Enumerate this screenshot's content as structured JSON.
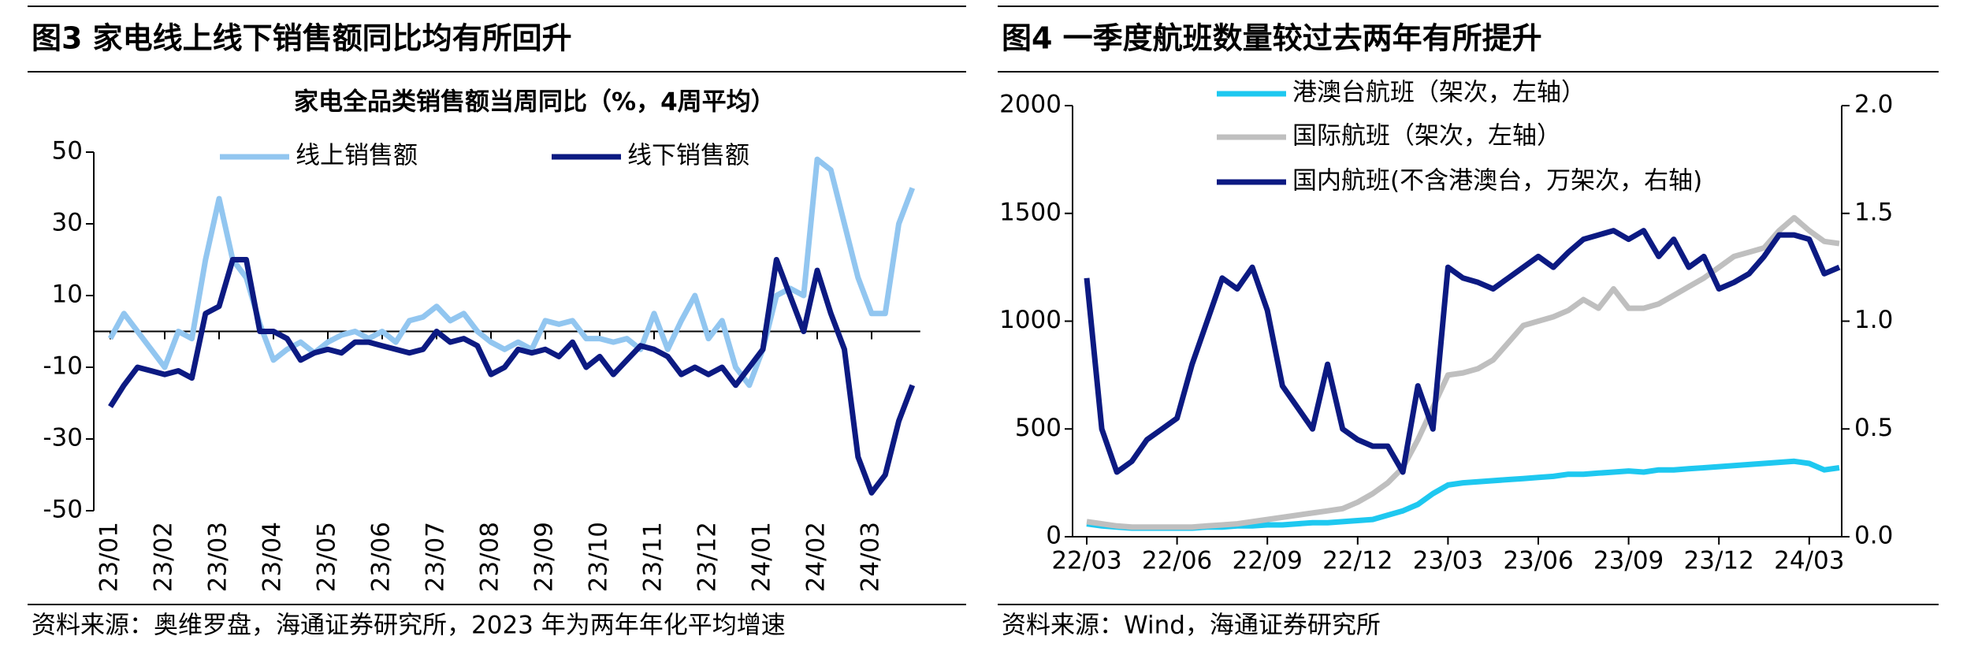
{
  "chart_data": [
    {
      "type": "line",
      "heading": "图3  家电线上线下销售额同比均有所回升",
      "title": "家电全品类销售额当周同比（%，4周平均）",
      "source": "资料来源：奥维罗盘，海通证券研究所，2023 年为两年年化平均增速",
      "categories": [
        "23/01",
        null,
        null,
        null,
        "23/02",
        null,
        null,
        null,
        "23/03",
        null,
        null,
        null,
        "23/04",
        null,
        null,
        null,
        "23/05",
        null,
        null,
        null,
        "23/06",
        null,
        null,
        null,
        "23/07",
        null,
        null,
        null,
        "23/08",
        null,
        null,
        null,
        "23/09",
        null,
        null,
        null,
        "23/10",
        null,
        null,
        null,
        "23/11",
        null,
        null,
        null,
        "23/12",
        null,
        null,
        null,
        "24/01",
        null,
        null,
        null,
        "24/02",
        null,
        null,
        null,
        "24/03",
        null,
        null,
        null
      ],
      "ylim": [
        -50,
        50
      ],
      "yticks": [
        -50,
        -30,
        -10,
        10,
        30,
        50
      ],
      "legend": "top",
      "series": [
        {
          "name": "线上销售额",
          "color": "#92c6f0",
          "values": [
            -2,
            5,
            0,
            -5,
            -10,
            0,
            -2,
            20,
            37,
            20,
            15,
            2,
            -8,
            -5,
            -3,
            -6,
            -3,
            -1,
            0,
            -2,
            0,
            -3,
            3,
            4,
            7,
            3,
            5,
            0,
            -3,
            -5,
            -3,
            -5,
            3,
            2,
            3,
            -2,
            -2,
            -3,
            -2,
            -5,
            5,
            -5,
            3,
            10,
            -2,
            3,
            -10,
            -15,
            -5,
            10,
            12,
            10,
            48,
            45,
            30,
            15,
            5,
            5,
            30,
            40
          ]
        },
        {
          "name": "线下销售额",
          "color": "#0c1a82",
          "values": [
            -21,
            -15,
            -10,
            -11,
            -12,
            -11,
            -13,
            5,
            7,
            20,
            20,
            0,
            0,
            -2,
            -8,
            -6,
            -5,
            -6,
            -3,
            -3,
            -4,
            -5,
            -6,
            -5,
            0,
            -3,
            -2,
            -4,
            -12,
            -10,
            -5,
            -6,
            -5,
            -7,
            -3,
            -10,
            -7,
            -12,
            -8,
            -4,
            -5,
            -7,
            -12,
            -10,
            -12,
            -10,
            -15,
            -10,
            -5,
            20,
            10,
            0,
            17,
            5,
            -5,
            -35,
            -45,
            -40,
            -25,
            -15
          ]
        }
      ]
    },
    {
      "type": "line",
      "heading": "图4  一季度航班数量较过去两年有所提升",
      "source": "资料来源：Wind，海通证券研究所",
      "categories": [
        "22/03",
        null,
        null,
        null,
        null,
        null,
        "22/06",
        null,
        null,
        null,
        null,
        null,
        "22/09",
        null,
        null,
        null,
        null,
        null,
        "22/12",
        null,
        null,
        null,
        null,
        null,
        "23/03",
        null,
        null,
        null,
        null,
        null,
        "23/06",
        null,
        null,
        null,
        null,
        null,
        "23/09",
        null,
        null,
        null,
        null,
        null,
        "23/12",
        null,
        null,
        null,
        null,
        null,
        "24/03",
        null,
        null
      ],
      "ylim": [
        0,
        2000
      ],
      "yticks": [
        0,
        500,
        1000,
        1500,
        2000
      ],
      "y2lim": [
        0,
        2
      ],
      "y2ticks": [
        {
          "value": 0,
          "label": "0.0"
        },
        0.5,
        {
          "value": 1,
          "label": "1.0"
        },
        1.5,
        {
          "value": 2,
          "label": "2.0"
        }
      ],
      "legend": "upper left",
      "series": [
        {
          "name": "港澳台航班（架次，左轴）",
          "color": "#1ec8f0",
          "values": [
            60,
            50,
            45,
            40,
            40,
            40,
            40,
            40,
            45,
            45,
            50,
            50,
            55,
            55,
            60,
            65,
            65,
            70,
            75,
            80,
            100,
            120,
            150,
            200,
            240,
            250,
            255,
            260,
            265,
            270,
            275,
            280,
            290,
            290,
            295,
            300,
            305,
            300,
            310,
            310,
            315,
            320,
            325,
            330,
            335,
            340,
            345,
            350,
            340,
            310,
            320
          ]
        },
        {
          "name": "国际航班（架次，左轴）",
          "color": "#bfbfbf",
          "values": [
            70,
            60,
            50,
            45,
            45,
            45,
            45,
            45,
            50,
            55,
            60,
            70,
            80,
            90,
            100,
            110,
            120,
            130,
            160,
            200,
            250,
            320,
            450,
            600,
            750,
            760,
            780,
            820,
            900,
            980,
            1000,
            1020,
            1050,
            1100,
            1060,
            1150,
            1060,
            1060,
            1080,
            1120,
            1160,
            1200,
            1250,
            1300,
            1320,
            1340,
            1420,
            1480,
            1420,
            1370,
            1360
          ]
        },
        {
          "name": "国内航班(不含港澳台，万架次，右轴)",
          "color": "#0c1a82",
          "axis": "y2",
          "values": [
            1.2,
            0.5,
            0.3,
            0.35,
            0.45,
            0.5,
            0.55,
            0.8,
            1.0,
            1.2,
            1.15,
            1.25,
            1.05,
            0.7,
            0.6,
            0.5,
            0.8,
            0.5,
            0.45,
            0.42,
            0.42,
            0.3,
            0.7,
            0.5,
            1.25,
            1.2,
            1.18,
            1.15,
            1.2,
            1.25,
            1.3,
            1.25,
            1.32,
            1.38,
            1.4,
            1.42,
            1.38,
            1.42,
            1.3,
            1.38,
            1.25,
            1.3,
            1.15,
            1.18,
            1.22,
            1.3,
            1.4,
            1.4,
            1.38,
            1.22,
            1.25
          ]
        }
      ]
    }
  ]
}
